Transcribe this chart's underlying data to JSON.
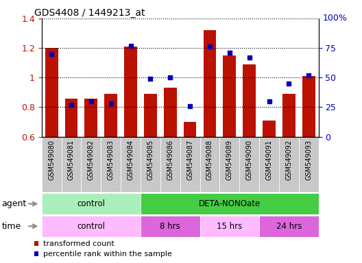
{
  "title": "GDS4408 / 1449213_at",
  "samples": [
    "GSM549080",
    "GSM549081",
    "GSM549082",
    "GSM549083",
    "GSM549084",
    "GSM549085",
    "GSM549086",
    "GSM549087",
    "GSM549088",
    "GSM549089",
    "GSM549090",
    "GSM549091",
    "GSM549092",
    "GSM549093"
  ],
  "bar_values": [
    1.2,
    0.86,
    0.86,
    0.89,
    1.21,
    0.89,
    0.93,
    0.7,
    1.32,
    1.15,
    1.09,
    0.71,
    0.89,
    1.01
  ],
  "dot_values": [
    70,
    27,
    30,
    28,
    77,
    49,
    50,
    26,
    76,
    71,
    67,
    30,
    45,
    52
  ],
  "ylim": [
    0.6,
    1.4
  ],
  "y2lim": [
    0,
    100
  ],
  "yticks_left": [
    0.6,
    0.8,
    1.0,
    1.2,
    1.4
  ],
  "yticks_right": [
    0,
    25,
    50,
    75,
    100
  ],
  "ytick_labels_left": [
    "0.6",
    "0.8",
    "1",
    "1.2",
    "1.4"
  ],
  "ytick_labels_right": [
    "0",
    "25",
    "50",
    "75",
    "100%"
  ],
  "bar_color": "#BB1100",
  "dot_color": "#0000BB",
  "grid_color": "#000000",
  "tick_bg_color": "#C8C8C8",
  "agent_groups": [
    {
      "label": "control",
      "start": 0,
      "end": 5,
      "color": "#AAEEBB"
    },
    {
      "label": "DETA-NONOate",
      "start": 5,
      "end": 14,
      "color": "#44CC44"
    }
  ],
  "time_groups": [
    {
      "label": "control",
      "start": 0,
      "end": 5,
      "color": "#FFBBFF"
    },
    {
      "label": "8 hrs",
      "start": 5,
      "end": 8,
      "color": "#DD66DD"
    },
    {
      "label": "15 hrs",
      "start": 8,
      "end": 11,
      "color": "#FFBBFF"
    },
    {
      "label": "24 hrs",
      "start": 11,
      "end": 14,
      "color": "#DD66DD"
    }
  ],
  "legend_items": [
    {
      "label": "transformed count",
      "color": "#BB1100"
    },
    {
      "label": "percentile rank within the sample",
      "color": "#0000BB"
    }
  ]
}
